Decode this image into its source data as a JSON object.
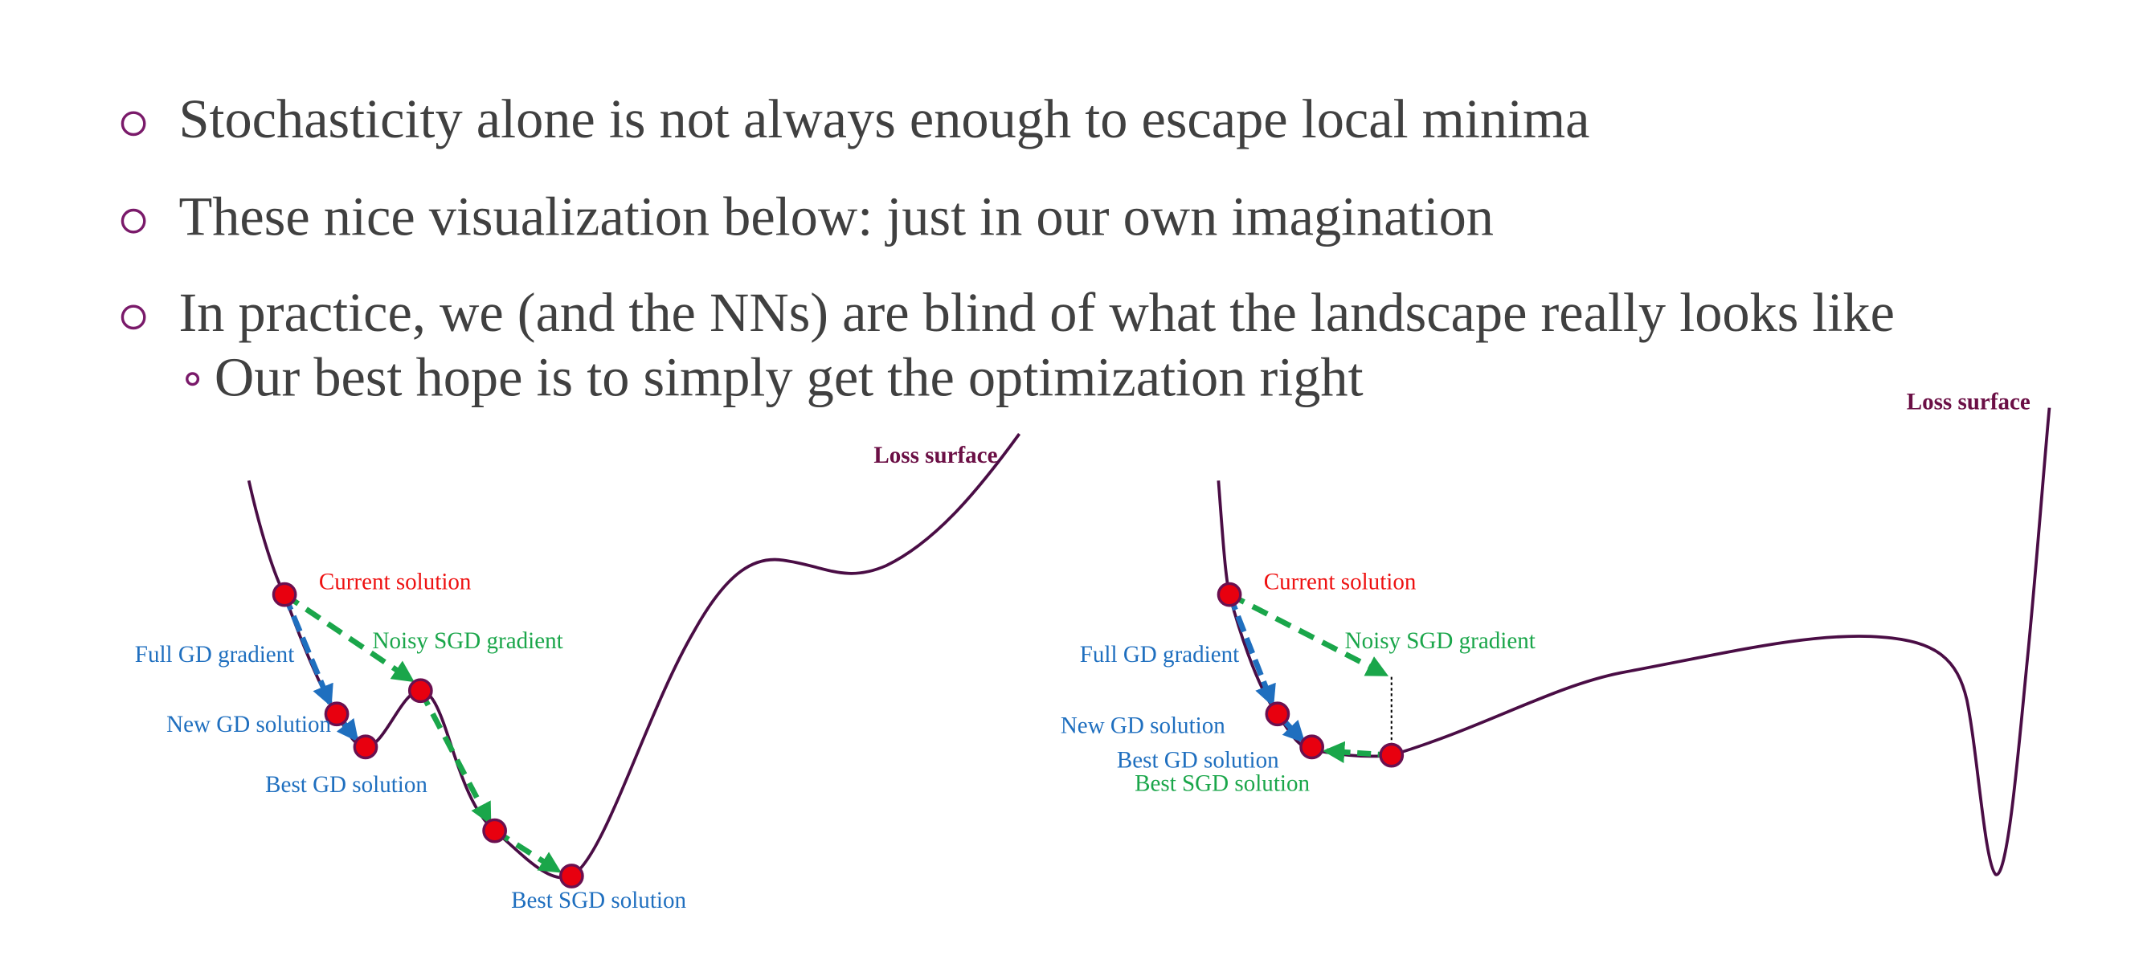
{
  "bullets": [
    "Stochasticity alone is not always enough to escape local minima",
    "These nice visualization below: just in our own imagination",
    "In practice, we (and the NNs) are blind of what the landscape really looks like"
  ],
  "sub_bullets": [
    "Our best hope is to simply get the optimization right"
  ],
  "diagrams": [
    {
      "title": "Loss surface",
      "labels": [
        "Current solution",
        "Noisy SGD gradient",
        "Full GD gradient",
        "New GD solution",
        "Best GD solution",
        "Best SGD solution"
      ]
    },
    {
      "title": "Loss surface",
      "labels": [
        "Current solution",
        "Noisy SGD gradient",
        "Full GD gradient",
        "New GD solution",
        "Best GD solution",
        "Best SGD solution"
      ]
    }
  ]
}
